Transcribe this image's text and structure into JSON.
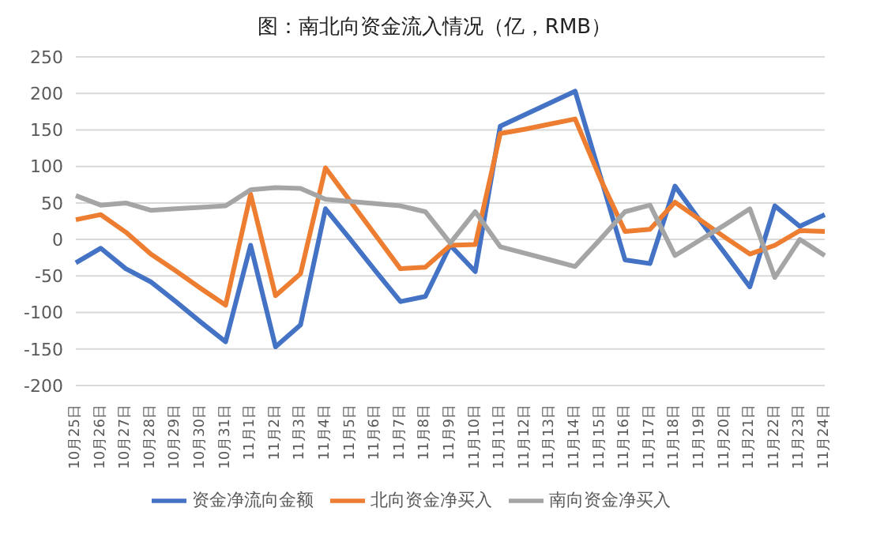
{
  "chart_data": {
    "type": "line",
    "title": "图：南北向资金流入情况（亿，RMB）",
    "categories": [
      "10月25日",
      "10月26日",
      "10月27日",
      "10月28日",
      "10月29日",
      "10月30日",
      "10月31日",
      "11月1日",
      "11月2日",
      "11月3日",
      "11月4日",
      "11月5日",
      "11月6日",
      "11月7日",
      "11月8日",
      "11月9日",
      "11月10日",
      "11月11日",
      "11月12日",
      "11月13日",
      "11月14日",
      "11月15日",
      "11月16日",
      "11月17日",
      "11月18日",
      "11月19日",
      "11月20日",
      "11月21日",
      "11月22日",
      "11月23日",
      "11月24日"
    ],
    "series": [
      {
        "name": "资金净流向金额",
        "color": "#4472c4",
        "values": [
          -32,
          -12,
          -40,
          -58,
          -85,
          -113,
          -140,
          -8,
          -147,
          -117,
          42,
          0,
          -43,
          -85,
          -78,
          -8,
          -44,
          155,
          171,
          187,
          203,
          88,
          -28,
          -33,
          73,
          26,
          -19,
          -65,
          46,
          18,
          34
        ]
      },
      {
        "name": "北向资金净买入",
        "color": "#ed7d31",
        "values": [
          27,
          34,
          10,
          -20,
          -43,
          -67,
          -90,
          62,
          -77,
          -47,
          98,
          52,
          6,
          -40,
          -38,
          -8,
          -7,
          145,
          151,
          158,
          165,
          84,
          11,
          14,
          51,
          27,
          3,
          -20,
          -8,
          12,
          11
        ]
      },
      {
        "name": "南向资金净买入",
        "color": "#a5a5a5",
        "values": [
          60,
          47,
          50,
          40,
          42,
          44,
          46,
          68,
          71,
          70,
          55,
          52,
          49,
          46,
          38,
          -5,
          38,
          -10,
          -19,
          -28,
          -37,
          0,
          38,
          47,
          -22,
          -1,
          20,
          42,
          -52,
          0,
          -22
        ]
      }
    ],
    "ylim": [
      -200,
      250
    ],
    "yticks": [
      -200,
      -150,
      -100,
      -50,
      0,
      50,
      100,
      150,
      200,
      250
    ],
    "grid": "y",
    "legend": "bottom",
    "marker": "none",
    "line_style": "solid"
  }
}
